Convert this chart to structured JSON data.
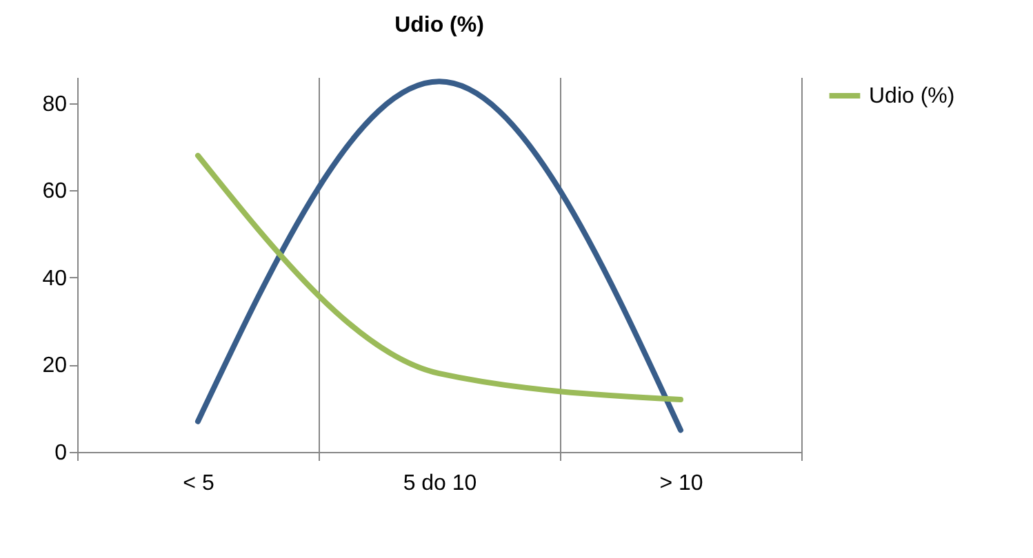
{
  "chart_data": {
    "type": "line",
    "title": "Udio (%)",
    "categories": [
      "< 5",
      "5 do 10",
      "> 10"
    ],
    "series": [
      {
        "color": "#385d8a",
        "values": [
          7,
          85,
          5
        ]
      },
      {
        "name": "Udio (%)",
        "color": "#9bbb59",
        "values": [
          68,
          18,
          12
        ]
      }
    ],
    "ylim": [
      0,
      86
    ],
    "yticks": [
      0,
      20,
      40,
      60,
      80
    ],
    "grid": "x",
    "legend": "right"
  }
}
